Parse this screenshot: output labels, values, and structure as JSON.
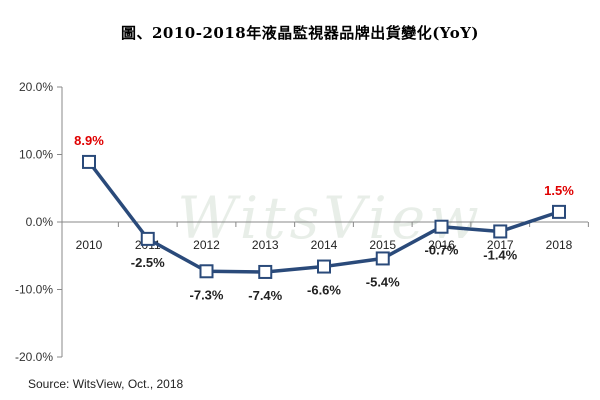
{
  "chart_data": {
    "type": "line",
    "title": "圖、2010-2018年液晶監視器品牌出貨變化(YoY)",
    "categories": [
      "2010",
      "2011",
      "2012",
      "2013",
      "2014",
      "2015",
      "2016",
      "2017",
      "2018"
    ],
    "values": [
      8.9,
      -2.5,
      -7.3,
      -7.4,
      -6.6,
      -5.4,
      -0.7,
      -1.4,
      1.5
    ],
    "data_labels": [
      "8.9%",
      "-2.5%",
      "-7.3%",
      "-7.4%",
      "-6.6%",
      "-5.4%",
      "-0.7%",
      "-1.4%",
      "1.5%"
    ],
    "highlight_labels": [
      0,
      8
    ],
    "ylim": [
      -20,
      20
    ],
    "yticks": [
      20,
      10,
      0,
      -10,
      -20
    ],
    "ytick_labels": [
      "20.0%",
      "10.0%",
      "0.0%",
      "-10.0%",
      "-20.0%"
    ],
    "grid": false,
    "line_color": "#2a4a7a",
    "highlight_color": "#e00000",
    "source": "Source: WitsView, Oct., 2018",
    "watermark": "WitsView"
  }
}
